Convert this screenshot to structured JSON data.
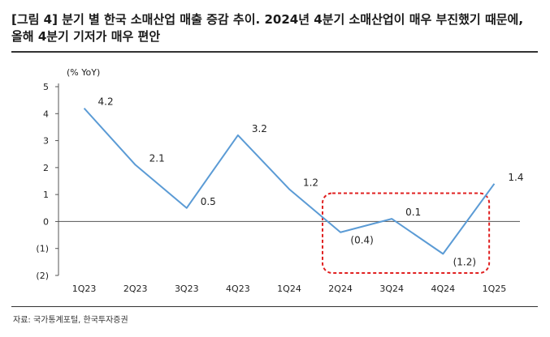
{
  "title_lines": [
    "[그림 4] 분기 별 한국 소매산업 매출 증감 추이. 2024년 4분기 소매산업이 매우 부진했기 때문에,",
    "올해 4분기 기저가 매우 편안"
  ],
  "source": "자료: 국가통계포털, 한국투자증권",
  "chart_data": {
    "type": "line",
    "ylabel": "(% YoY)",
    "categories": [
      "1Q23",
      "2Q23",
      "3Q23",
      "4Q23",
      "1Q24",
      "2Q24",
      "3Q24",
      "4Q24",
      "1Q25"
    ],
    "series": [
      {
        "values": [
          4.2,
          2.1,
          0.5,
          3.2,
          1.2,
          -0.4,
          0.1,
          -1.2,
          1.4
        ]
      }
    ],
    "data_labels": [
      "4.2",
      "2.1",
      "0.5",
      "3.2",
      "1.2",
      "(0.4)",
      "0.1",
      "(1.2)",
      "1.4"
    ],
    "ylim": [
      -2,
      5
    ],
    "yticks": [
      5,
      4,
      3,
      2,
      1,
      0,
      -1,
      -2
    ],
    "ytick_labels": [
      "5",
      "4",
      "3",
      "2",
      "1",
      "0",
      "(1)",
      "(2)"
    ],
    "grid": false,
    "legend": "none",
    "highlight": {
      "from_category": "2Q24",
      "to_category": "1Q25",
      "color": "#e02020"
    },
    "line_color": "#5b9bd5"
  }
}
